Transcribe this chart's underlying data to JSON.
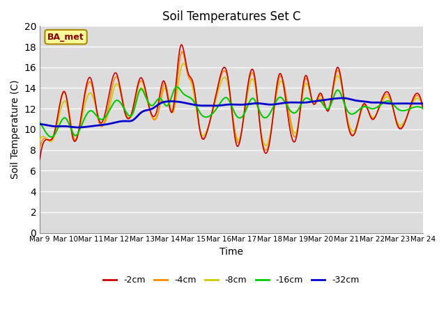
{
  "title": "Soil Temperatures Set C",
  "xlabel": "Time",
  "ylabel": "Soil Temperature (C)",
  "ylim": [
    0,
    20
  ],
  "yticks": [
    0,
    2,
    4,
    6,
    8,
    10,
    12,
    14,
    16,
    18,
    20
  ],
  "xlim": [
    0,
    15
  ],
  "xtick_labels": [
    "Mar 9",
    "Mar 10",
    "Mar 11",
    "Mar 12",
    "Mar 13",
    "Mar 14",
    "Mar 15",
    "Mar 16",
    "Mar 17",
    "Mar 18",
    "Mar 19",
    "Mar 20",
    "Mar 21",
    "Mar 22",
    "Mar 23",
    "Mar 24"
  ],
  "legend_label": "BA_met",
  "bg_color": "#dcdcdc",
  "series_colors": {
    "-2cm": "#cc0000",
    "-4cm": "#ff8800",
    "-8cm": "#cccc00",
    "-16cm": "#00cc00",
    "-32cm": "#0000cc"
  },
  "annotation_box_color": "#ffff99",
  "annotation_box_edgecolor": "#aa8800",
  "annotation_text_color": "#880000",
  "y2cm": [
    7.1,
    9.0,
    9.5,
    13.5,
    9.1,
    11.0,
    14.9,
    11.0,
    12.0,
    15.4,
    11.9,
    11.6,
    15.0,
    12.0,
    12.0,
    14.7,
    11.8,
    18.0,
    15.5,
    14.5,
    9.5,
    9.8,
    14.5,
    15.2,
    8.5,
    11.6,
    15.3,
    9.7,
    8.8,
    15.4,
    11.5,
    9.3,
    15.2,
    12.5,
    13.5,
    11.8,
    16.0,
    11.3,
    9.5,
    12.5,
    11.0,
    12.3,
    13.3,
    10.4,
    12.2,
    12.0
  ],
  "x2cm": [
    0.0,
    0.3,
    0.55,
    1.0,
    1.3,
    1.6,
    2.0,
    2.3,
    2.6,
    3.0,
    3.3,
    3.6,
    3.95,
    4.3,
    4.6,
    4.85,
    5.2,
    5.5,
    5.8,
    6.0,
    6.3,
    6.55,
    7.0,
    7.35,
    7.7,
    8.0,
    8.4,
    8.65,
    9.0,
    9.4,
    9.7,
    10.05,
    10.4,
    10.7,
    11.0,
    11.3,
    11.65,
    12.0,
    12.3,
    12.7,
    13.0,
    13.3,
    13.7,
    14.0,
    14.5,
    15.0
  ],
  "y4cm": [
    8.2,
    9.0,
    9.4,
    13.5,
    9.0,
    10.8,
    14.5,
    10.8,
    11.8,
    15.1,
    11.7,
    11.5,
    14.7,
    11.9,
    11.8,
    14.5,
    11.7,
    17.5,
    15.2,
    14.3,
    9.6,
    9.8,
    14.3,
    15.0,
    8.7,
    11.5,
    15.0,
    9.8,
    9.0,
    15.1,
    11.6,
    9.5,
    14.9,
    12.5,
    13.3,
    11.9,
    15.7,
    11.4,
    9.7,
    12.4,
    11.1,
    12.2,
    13.1,
    10.5,
    12.1,
    12.0
  ],
  "x4cm": [
    0.0,
    0.3,
    0.55,
    1.0,
    1.35,
    1.6,
    2.0,
    2.3,
    2.65,
    3.0,
    3.35,
    3.6,
    3.95,
    4.3,
    4.65,
    4.9,
    5.2,
    5.55,
    5.8,
    6.0,
    6.3,
    6.55,
    7.0,
    7.35,
    7.75,
    8.0,
    8.4,
    8.65,
    9.0,
    9.4,
    9.75,
    10.05,
    10.4,
    10.7,
    11.0,
    11.3,
    11.65,
    12.0,
    12.35,
    12.7,
    13.0,
    13.3,
    13.7,
    14.0,
    14.5,
    15.0
  ],
  "y8cm": [
    9.0,
    9.0,
    9.2,
    12.7,
    9.0,
    10.5,
    13.5,
    10.8,
    11.3,
    14.4,
    11.7,
    11.3,
    14.0,
    11.9,
    11.7,
    14.0,
    11.6,
    16.1,
    15.5,
    13.8,
    9.7,
    10.0,
    13.8,
    14.5,
    9.0,
    11.3,
    14.5,
    10.0,
    9.3,
    14.6,
    11.8,
    9.8,
    14.4,
    12.6,
    13.0,
    12.0,
    15.2,
    11.6,
    10.0,
    12.3,
    11.2,
    12.1,
    12.9,
    10.7,
    12.0,
    12.0
  ],
  "x8cm": [
    0.0,
    0.3,
    0.55,
    1.0,
    1.4,
    1.6,
    2.0,
    2.35,
    2.65,
    3.0,
    3.35,
    3.6,
    3.95,
    4.3,
    4.65,
    4.9,
    5.2,
    5.55,
    5.8,
    6.0,
    6.3,
    6.55,
    7.0,
    7.35,
    7.75,
    8.0,
    8.4,
    8.65,
    9.0,
    9.4,
    9.75,
    10.05,
    10.4,
    10.7,
    11.0,
    11.3,
    11.65,
    12.0,
    12.35,
    12.7,
    13.0,
    13.3,
    13.7,
    14.0,
    14.5,
    15.0
  ],
  "y16cm": [
    10.7,
    9.5,
    9.4,
    11.1,
    9.4,
    10.2,
    11.8,
    11.0,
    11.5,
    12.8,
    11.8,
    11.6,
    13.9,
    13.4,
    12.3,
    13.0,
    12.3,
    14.0,
    13.5,
    12.8,
    11.5,
    11.2,
    12.3,
    13.0,
    11.5,
    11.5,
    13.0,
    11.5,
    11.5,
    13.1,
    12.0,
    11.7,
    13.0,
    12.7,
    12.7,
    12.0,
    13.8,
    12.0,
    11.6,
    12.2,
    12.0,
    12.3,
    12.7,
    12.0,
    12.0,
    12.0
  ],
  "x16cm": [
    0.0,
    0.3,
    0.55,
    1.0,
    1.4,
    1.6,
    2.0,
    2.35,
    2.65,
    3.0,
    3.35,
    3.65,
    3.95,
    4.1,
    4.4,
    4.7,
    5.0,
    5.3,
    5.6,
    6.0,
    6.3,
    6.55,
    7.0,
    7.35,
    7.65,
    8.0,
    8.35,
    8.65,
    9.0,
    9.4,
    9.75,
    10.05,
    10.4,
    10.7,
    11.0,
    11.3,
    11.65,
    12.0,
    12.35,
    12.7,
    13.0,
    13.3,
    13.7,
    14.0,
    14.5,
    15.0
  ],
  "y32cm": [
    10.5,
    10.4,
    10.3,
    10.3,
    10.2,
    10.2,
    10.3,
    10.4,
    10.5,
    10.7,
    10.8,
    10.9,
    11.6,
    11.8,
    12.0,
    12.5,
    12.7,
    12.7,
    12.6,
    12.4,
    12.3,
    12.3,
    12.3,
    12.4,
    12.4,
    12.4,
    12.5,
    12.5,
    12.4,
    12.5,
    12.6,
    12.6,
    12.6,
    12.7,
    12.8,
    12.9,
    13.0,
    13.0,
    12.8,
    12.7,
    12.6,
    12.6,
    12.5,
    12.5,
    12.5,
    12.5
  ],
  "x32cm": [
    0.0,
    0.3,
    0.55,
    1.0,
    1.4,
    1.6,
    2.0,
    2.35,
    2.65,
    3.0,
    3.35,
    3.65,
    3.95,
    4.1,
    4.4,
    4.7,
    5.0,
    5.3,
    5.6,
    6.0,
    6.3,
    6.55,
    7.0,
    7.35,
    7.65,
    8.0,
    8.35,
    8.65,
    9.0,
    9.4,
    9.75,
    10.05,
    10.4,
    10.7,
    11.0,
    11.3,
    11.65,
    12.0,
    12.35,
    12.7,
    13.0,
    13.3,
    13.7,
    14.0,
    14.5,
    15.0
  ]
}
